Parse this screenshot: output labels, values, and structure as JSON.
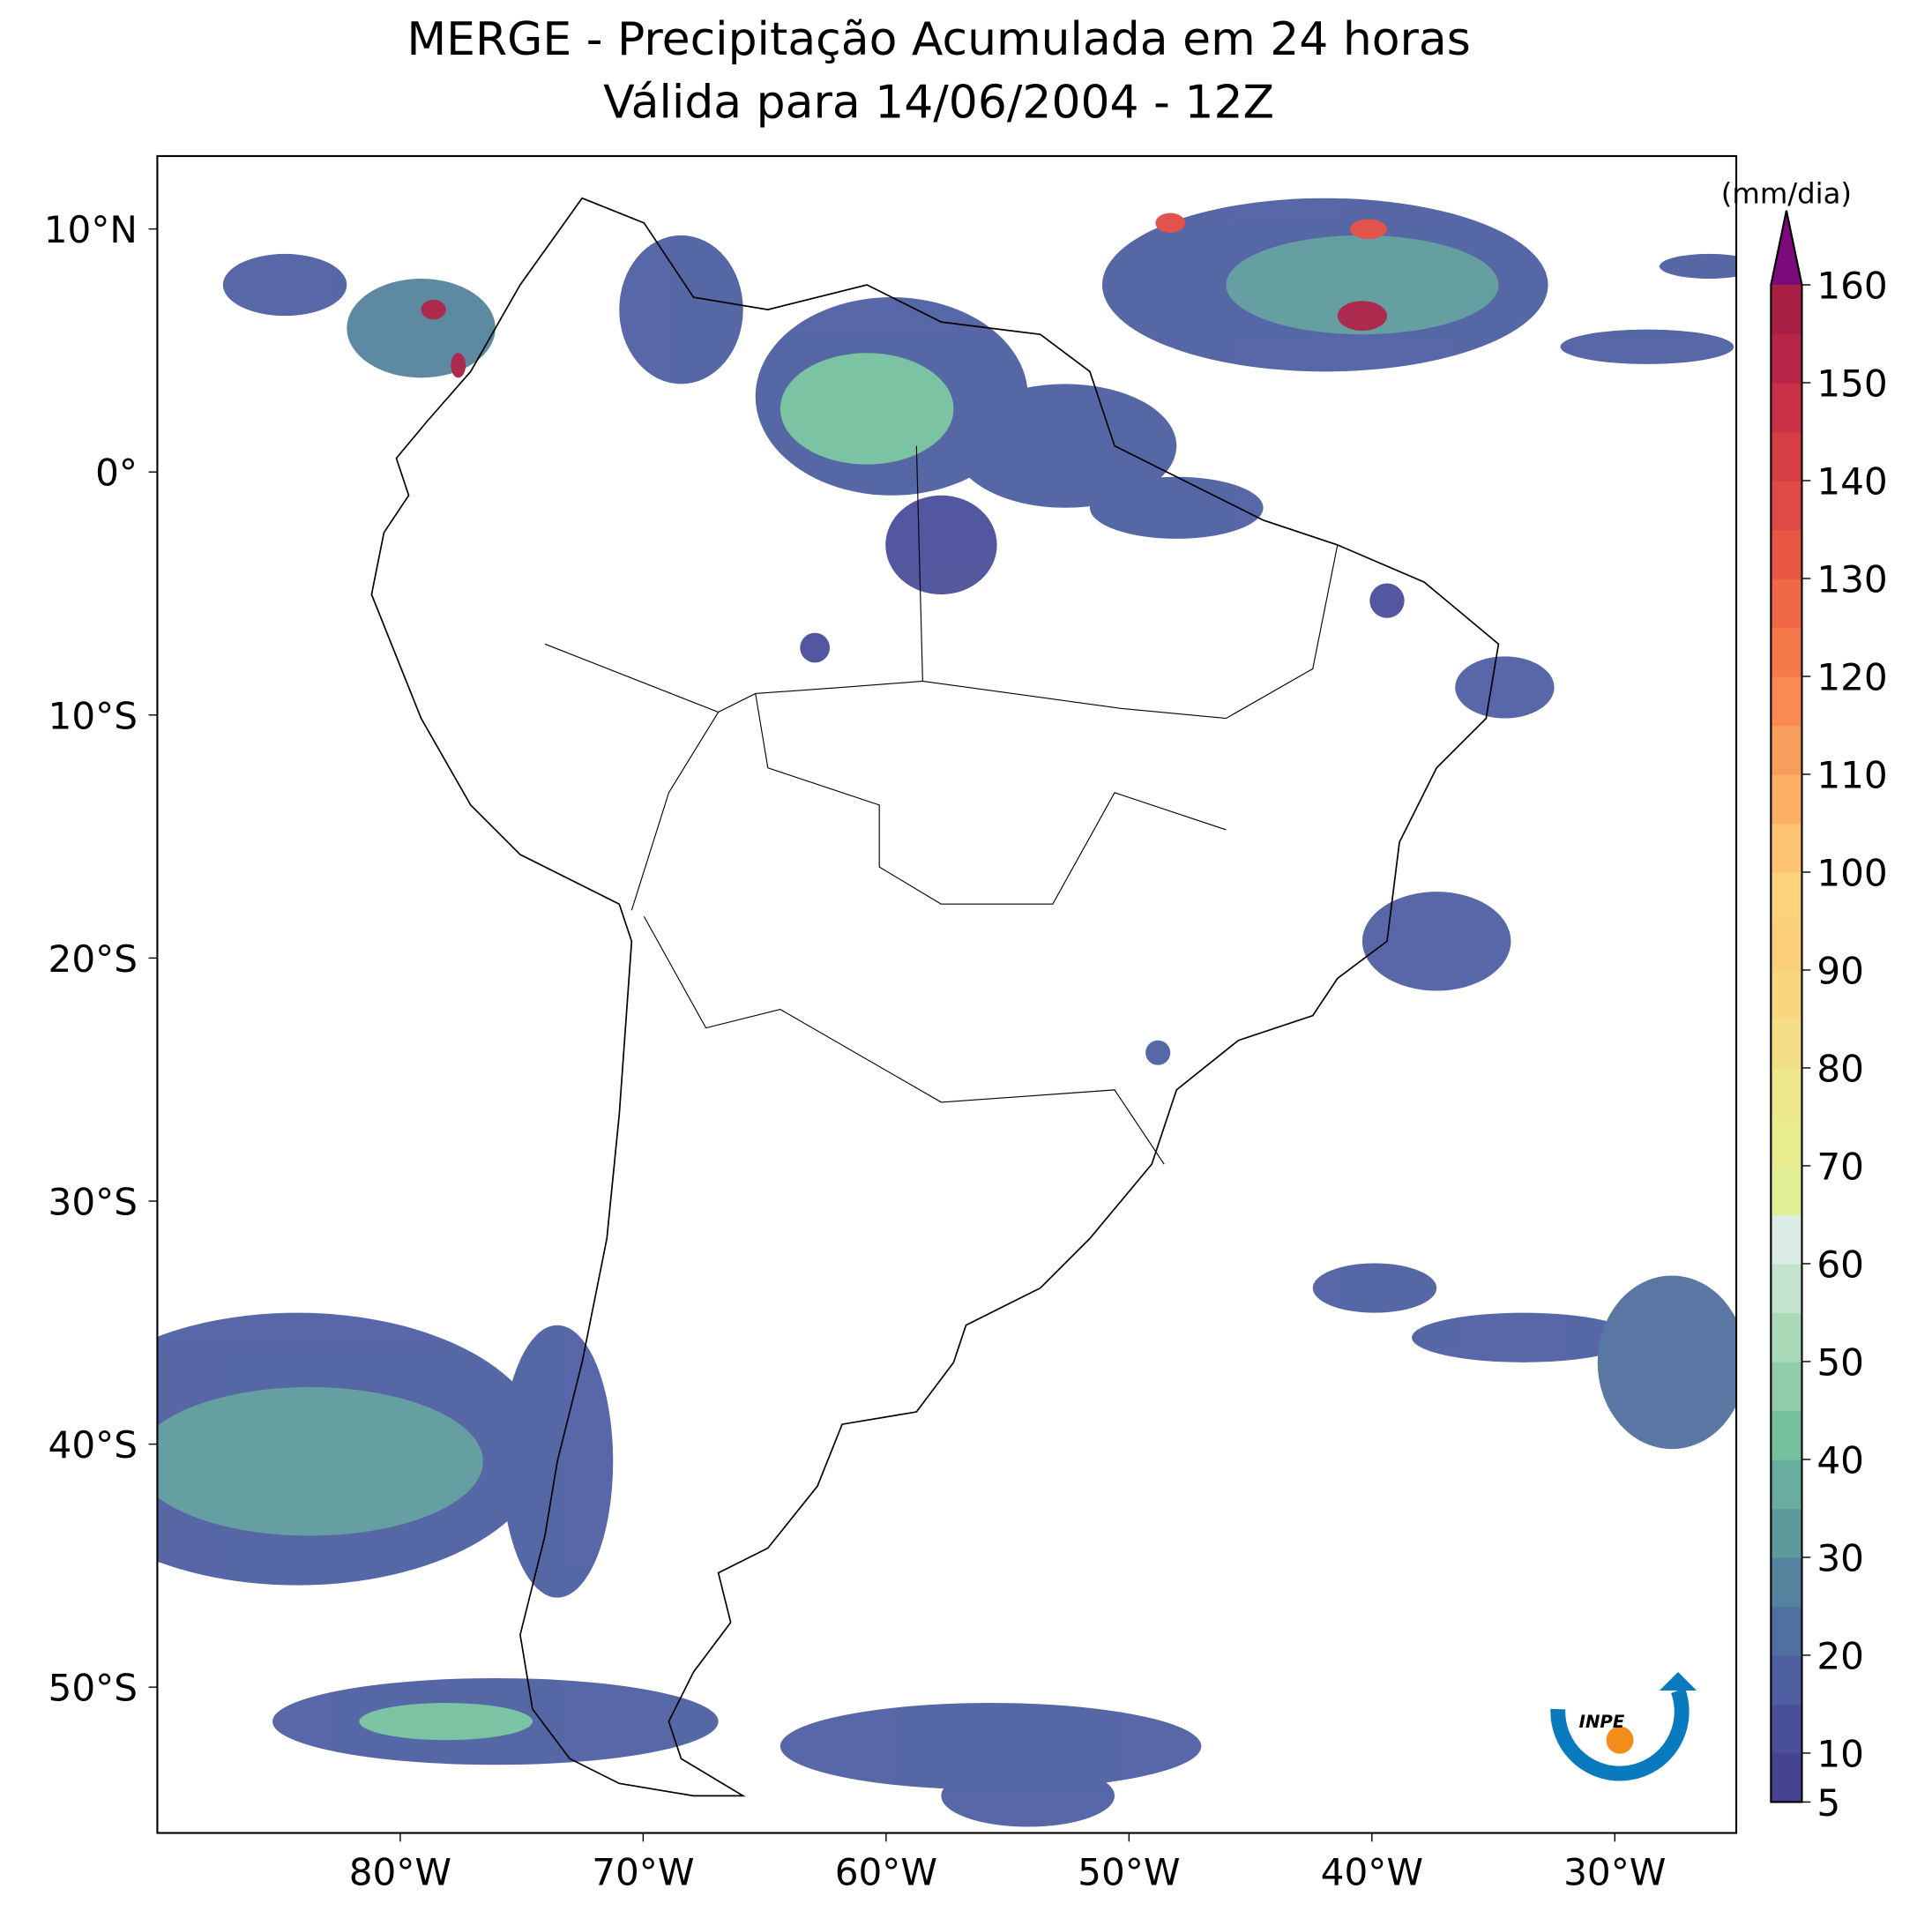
{
  "header": {
    "title": "MERGE - Precipitação Acumulada em 24 horas",
    "subtitle": "Válida para 14/06/2004 - 12Z"
  },
  "map": {
    "lonlim": [
      -90,
      -25
    ],
    "latlim": [
      -56,
      13
    ],
    "lonticks": [
      {
        "value": -80,
        "label": "80°W"
      },
      {
        "value": -70,
        "label": "70°W"
      },
      {
        "value": -60,
        "label": "60°W"
      },
      {
        "value": -50,
        "label": "50°W"
      },
      {
        "value": -40,
        "label": "40°W"
      },
      {
        "value": -30,
        "label": "30°W"
      }
    ],
    "latticks": [
      {
        "value": 10,
        "label": "10°N"
      },
      {
        "value": 0,
        "label": "0°"
      },
      {
        "value": -10,
        "label": "10°S"
      },
      {
        "value": -20,
        "label": "20°S"
      },
      {
        "value": -30,
        "label": "30°S"
      },
      {
        "value": -40,
        "label": "40°S"
      },
      {
        "value": -50,
        "label": "50°S"
      }
    ]
  },
  "colorbar": {
    "label": "(mm/dia)",
    "lim": [
      5,
      160
    ],
    "ticks": [
      5,
      10,
      20,
      30,
      40,
      50,
      60,
      70,
      80,
      90,
      100,
      110,
      120,
      130,
      140,
      150,
      160
    ],
    "colors": [
      "#45428f",
      "#4a4f9a",
      "#4e5fa2",
      "#52709f",
      "#55839d",
      "#5d9a9c",
      "#68ad9e",
      "#74c09f",
      "#8fcdaa",
      "#a9d9b7",
      "#c4e4cf",
      "#dbece6",
      "#e2ee94",
      "#e8ec8c",
      "#eee68a",
      "#f5df86",
      "#f8d680",
      "#fbcf7c",
      "#fdd27c",
      "#fdc372",
      "#fbb066",
      "#f99d5c",
      "#f88a52",
      "#f5784b",
      "#f06847",
      "#e85744",
      "#e04a44",
      "#d63d45",
      "#ca3146",
      "#b82546",
      "#a81f45"
    ],
    "extend_color": "#7b0a7b"
  },
  "logo": {
    "text": "INPE"
  }
}
